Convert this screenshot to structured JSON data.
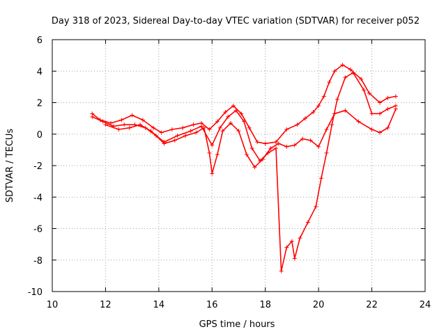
{
  "chart_data": {
    "type": "scatter",
    "title": "Day 318 of 2023, Sidereal Day-to-day VTEC variation (SDTVAR) for receiver p052",
    "xlabel": "GPS time / hours",
    "ylabel": "SDTVAR / TECUs",
    "xlim": [
      10,
      24
    ],
    "ylim": [
      -10,
      6
    ],
    "x_ticks": [
      "10",
      "12",
      "14",
      "16",
      "18",
      "20",
      "22",
      "24"
    ],
    "y_ticks": [
      "-10",
      "-8",
      "-6",
      "-4",
      "-2",
      "0",
      "2",
      "4",
      "6"
    ],
    "grid": true,
    "marker": "+",
    "colors": {
      "series": "#ff0000"
    },
    "series": [
      {
        "values": [
          [
            11.5,
            1.3
          ],
          [
            11.8,
            0.9
          ],
          [
            12.2,
            0.7
          ],
          [
            12.6,
            0.9
          ],
          [
            13.0,
            1.2
          ],
          [
            13.4,
            0.9
          ],
          [
            13.8,
            0.4
          ],
          [
            14.1,
            0.1
          ],
          [
            14.5,
            0.3
          ],
          [
            14.9,
            0.4
          ],
          [
            15.3,
            0.6
          ],
          [
            15.6,
            0.7
          ],
          [
            15.9,
            0.3
          ],
          [
            16.2,
            0.8
          ],
          [
            16.5,
            1.4
          ],
          [
            16.8,
            1.8
          ],
          [
            17.1,
            1.3
          ],
          [
            17.4,
            0.4
          ],
          [
            17.7,
            -0.5
          ],
          [
            18.0,
            -0.6
          ],
          [
            18.4,
            -0.5
          ],
          [
            18.8,
            0.3
          ],
          [
            19.2,
            0.6
          ],
          [
            19.5,
            1.0
          ],
          [
            19.8,
            1.4
          ],
          [
            20.0,
            1.8
          ],
          [
            20.2,
            2.4
          ],
          [
            20.4,
            3.3
          ],
          [
            20.6,
            4.0
          ],
          [
            20.9,
            4.4
          ],
          [
            21.2,
            4.1
          ],
          [
            21.6,
            3.5
          ],
          [
            21.9,
            2.6
          ],
          [
            22.3,
            2.0
          ],
          [
            22.6,
            2.3
          ],
          [
            22.9,
            2.4
          ]
        ]
      },
      {
        "values": [
          [
            11.5,
            1.1
          ],
          [
            11.9,
            0.8
          ],
          [
            12.3,
            0.5
          ],
          [
            12.7,
            0.6
          ],
          [
            13.1,
            0.6
          ],
          [
            13.5,
            0.4
          ],
          [
            13.9,
            -0.1
          ],
          [
            14.2,
            -0.6
          ],
          [
            14.6,
            -0.4
          ],
          [
            15.0,
            -0.1
          ],
          [
            15.4,
            0.1
          ],
          [
            15.7,
            0.4
          ],
          [
            15.9,
            -1.2
          ],
          [
            16.0,
            -2.5
          ],
          [
            16.2,
            -1.3
          ],
          [
            16.4,
            0.2
          ],
          [
            16.7,
            0.7
          ],
          [
            17.0,
            0.2
          ],
          [
            17.3,
            -1.3
          ],
          [
            17.6,
            -2.1
          ],
          [
            17.9,
            -1.6
          ],
          [
            18.2,
            -0.9
          ],
          [
            18.5,
            -0.6
          ],
          [
            18.8,
            -0.8
          ],
          [
            19.1,
            -0.7
          ],
          [
            19.4,
            -0.3
          ],
          [
            19.7,
            -0.4
          ],
          [
            20.0,
            -0.8
          ],
          [
            20.3,
            0.3
          ],
          [
            20.6,
            1.3
          ],
          [
            21.0,
            1.5
          ],
          [
            21.5,
            0.8
          ],
          [
            22.0,
            0.3
          ],
          [
            22.3,
            0.1
          ],
          [
            22.6,
            0.4
          ],
          [
            22.9,
            1.6
          ]
        ]
      },
      {
        "values": [
          [
            12.0,
            0.6
          ],
          [
            12.5,
            0.3
          ],
          [
            12.9,
            0.4
          ],
          [
            13.3,
            0.6
          ],
          [
            13.7,
            0.2
          ],
          [
            14.2,
            -0.5
          ],
          [
            14.7,
            -0.1
          ],
          [
            15.2,
            0.2
          ],
          [
            15.6,
            0.5
          ],
          [
            16.0,
            -0.7
          ],
          [
            16.3,
            0.4
          ],
          [
            16.6,
            1.1
          ],
          [
            16.9,
            1.5
          ],
          [
            17.2,
            0.8
          ],
          [
            17.5,
            -0.9
          ],
          [
            17.8,
            -1.7
          ],
          [
            18.1,
            -1.2
          ],
          [
            18.4,
            -0.9
          ],
          [
            18.6,
            -8.7
          ],
          [
            18.8,
            -7.2
          ],
          [
            19.0,
            -6.8
          ],
          [
            19.1,
            -7.9
          ],
          [
            19.3,
            -6.6
          ],
          [
            19.6,
            -5.6
          ],
          [
            19.9,
            -4.6
          ],
          [
            20.1,
            -2.8
          ],
          [
            20.3,
            -1.2
          ],
          [
            20.5,
            0.6
          ],
          [
            20.7,
            2.2
          ],
          [
            21.0,
            3.6
          ],
          [
            21.3,
            3.9
          ],
          [
            21.7,
            2.8
          ],
          [
            22.0,
            1.3
          ],
          [
            22.3,
            1.3
          ],
          [
            22.6,
            1.6
          ],
          [
            22.9,
            1.8
          ]
        ]
      }
    ]
  }
}
